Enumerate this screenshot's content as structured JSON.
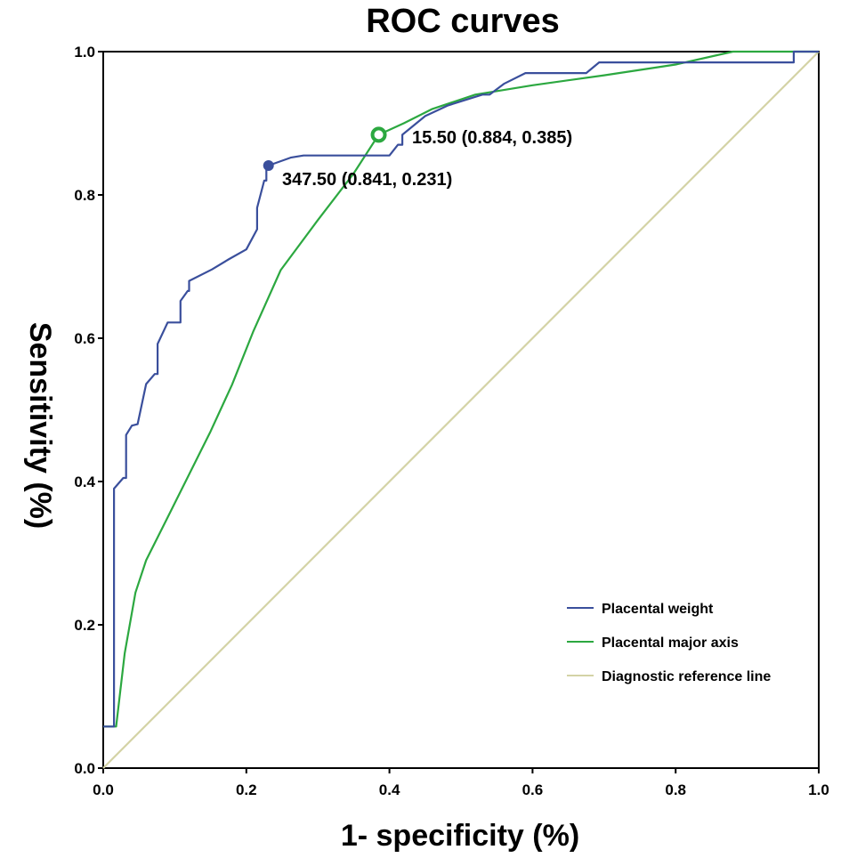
{
  "chart_data": {
    "type": "line",
    "title": "ROC curves",
    "xlabel": "1- specificity (%)",
    "ylabel": "Sensitivity (%)",
    "xlim": [
      0,
      1
    ],
    "ylim": [
      0,
      1
    ],
    "xticks": [
      "0.0",
      "0.2",
      "0.4",
      "0.6",
      "0.8",
      "1.0"
    ],
    "yticks": [
      "0.0",
      "0.2",
      "0.4",
      "0.6",
      "0.8",
      "1.0"
    ],
    "grid": false,
    "legend_position": "bottom-right",
    "series": [
      {
        "name": "Placental weight",
        "color": "#3a4f9c",
        "points": [
          [
            0,
            0.058
          ],
          [
            0.015,
            0.058
          ],
          [
            0.015,
            0.39
          ],
          [
            0.028,
            0.405
          ],
          [
            0.032,
            0.405
          ],
          [
            0.032,
            0.465
          ],
          [
            0.04,
            0.478
          ],
          [
            0.048,
            0.48
          ],
          [
            0.06,
            0.536
          ],
          [
            0.072,
            0.55
          ],
          [
            0.076,
            0.55
          ],
          [
            0.076,
            0.592
          ],
          [
            0.09,
            0.622
          ],
          [
            0.108,
            0.622
          ],
          [
            0.108,
            0.652
          ],
          [
            0.118,
            0.666
          ],
          [
            0.12,
            0.666
          ],
          [
            0.12,
            0.68
          ],
          [
            0.152,
            0.696
          ],
          [
            0.175,
            0.71
          ],
          [
            0.2,
            0.724
          ],
          [
            0.215,
            0.752
          ],
          [
            0.215,
            0.782
          ],
          [
            0.225,
            0.82
          ],
          [
            0.228,
            0.82
          ],
          [
            0.228,
            0.84
          ],
          [
            0.231,
            0.841
          ],
          [
            0.262,
            0.852
          ],
          [
            0.28,
            0.855
          ],
          [
            0.4,
            0.855
          ],
          [
            0.412,
            0.87
          ],
          [
            0.418,
            0.87
          ],
          [
            0.418,
            0.884
          ],
          [
            0.45,
            0.91
          ],
          [
            0.482,
            0.925
          ],
          [
            0.53,
            0.94
          ],
          [
            0.54,
            0.94
          ],
          [
            0.56,
            0.955
          ],
          [
            0.59,
            0.97
          ],
          [
            0.675,
            0.97
          ],
          [
            0.693,
            0.985
          ],
          [
            0.965,
            0.985
          ],
          [
            0.965,
            1.0
          ],
          [
            1.0,
            1.0
          ]
        ],
        "marker": {
          "x": 0.231,
          "y": 0.841,
          "style": "filled"
        }
      },
      {
        "name": "Placental major axis",
        "color": "#2ca840",
        "points": [
          [
            0,
            0.058
          ],
          [
            0.018,
            0.058
          ],
          [
            0.03,
            0.16
          ],
          [
            0.045,
            0.245
          ],
          [
            0.06,
            0.29
          ],
          [
            0.09,
            0.35
          ],
          [
            0.12,
            0.41
          ],
          [
            0.15,
            0.47
          ],
          [
            0.18,
            0.535
          ],
          [
            0.21,
            0.61
          ],
          [
            0.248,
            0.695
          ],
          [
            0.3,
            0.765
          ],
          [
            0.35,
            0.83
          ],
          [
            0.385,
            0.884
          ],
          [
            0.42,
            0.9
          ],
          [
            0.46,
            0.92
          ],
          [
            0.52,
            0.94
          ],
          [
            0.6,
            0.953
          ],
          [
            0.7,
            0.967
          ],
          [
            0.8,
            0.982
          ],
          [
            0.88,
            1.0
          ],
          [
            1.0,
            1.0
          ]
        ],
        "marker": {
          "x": 0.385,
          "y": 0.884,
          "style": "ring"
        }
      },
      {
        "name": "Diagnostic reference line",
        "color": "#d4d3a6",
        "points": [
          [
            0,
            0
          ],
          [
            1,
            1
          ]
        ]
      }
    ],
    "annotations": [
      {
        "text": "347.50 (0.841, 0.231)",
        "x": 0.231,
        "y": 0.841
      },
      {
        "text": "15.50 (0.884, 0.385)",
        "x": 0.385,
        "y": 0.884
      }
    ]
  }
}
